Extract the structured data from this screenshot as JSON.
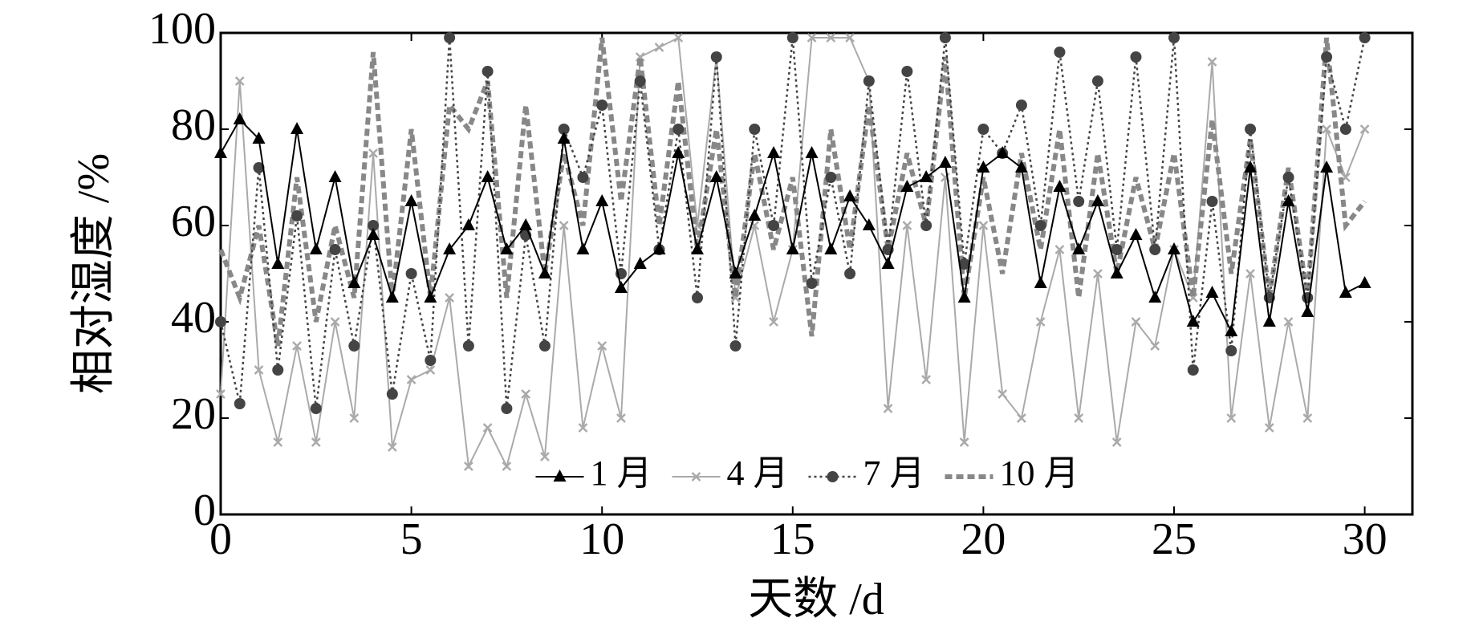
{
  "chart_data": {
    "type": "line",
    "xlabel": "天数 /d",
    "ylabel": "相对湿度 /%",
    "xlim": [
      0,
      31.25
    ],
    "ylim": [
      0,
      100
    ],
    "xticks": [
      0,
      5,
      10,
      15,
      20,
      25,
      30
    ],
    "yticks": [
      0,
      20,
      40,
      60,
      80,
      100
    ],
    "legend": "lower center",
    "x": [
      0,
      0.5,
      1,
      1.5,
      2,
      2.5,
      3,
      3.5,
      4,
      4.5,
      5,
      5.5,
      6,
      6.5,
      7,
      7.5,
      8,
      8.5,
      9,
      9.5,
      10,
      10.5,
      11,
      11.5,
      12,
      12.5,
      13,
      13.5,
      14,
      14.5,
      15,
      15.5,
      16,
      16.5,
      17,
      17.5,
      18,
      18.5,
      19,
      19.5,
      20,
      20.5,
      21,
      21.5,
      22,
      22.5,
      23,
      23.5,
      24,
      24.5,
      25,
      25.5,
      26,
      26.5,
      27,
      27.5,
      28,
      28.5,
      29,
      29.5,
      30
    ],
    "series": [
      {
        "name": "1 月",
        "color": "#000000",
        "marker": "triangle",
        "linestyle": "solid",
        "values": [
          75,
          82,
          78,
          52,
          80,
          55,
          70,
          48,
          58,
          45,
          65,
          45,
          55,
          60,
          70,
          55,
          60,
          50,
          78,
          55,
          65,
          47,
          52,
          55,
          75,
          55,
          70,
          50,
          62,
          75,
          55,
          75,
          55,
          66,
          60,
          52,
          68,
          70,
          73,
          45,
          72,
          75,
          72,
          48,
          68,
          55,
          65,
          50,
          58,
          45,
          55,
          40,
          46,
          38,
          72,
          40,
          65,
          42,
          72,
          46,
          48
        ]
      },
      {
        "name": "4 月",
        "color": "#aaaaaa",
        "marker": "x",
        "linestyle": "solid",
        "values": [
          25,
          90,
          30,
          15,
          35,
          15,
          40,
          20,
          75,
          14,
          28,
          30,
          45,
          10,
          18,
          10,
          25,
          12,
          60,
          18,
          35,
          20,
          95,
          97,
          99,
          60,
          95,
          45,
          60,
          40,
          55,
          99,
          99,
          99,
          90,
          22,
          60,
          28,
          70,
          15,
          60,
          25,
          20,
          40,
          55,
          20,
          50,
          15,
          40,
          35,
          55,
          45,
          94,
          20,
          50,
          18,
          40,
          20,
          80,
          70,
          80
        ]
      },
      {
        "name": "7 月",
        "color": "#444444",
        "marker": "circle",
        "linestyle": "dotted",
        "values": [
          40,
          23,
          72,
          30,
          62,
          22,
          55,
          35,
          60,
          25,
          50,
          32,
          99,
          35,
          92,
          22,
          58,
          35,
          80,
          70,
          85,
          50,
          90,
          55,
          80,
          45,
          95,
          35,
          80,
          60,
          99,
          48,
          70,
          50,
          90,
          55,
          92,
          60,
          99,
          52,
          80,
          75,
          85,
          60,
          96,
          65,
          90,
          55,
          95,
          55,
          99,
          30,
          65,
          34,
          80,
          45,
          70,
          45,
          95,
          80,
          99
        ]
      },
      {
        "name": "10 月",
        "color": "#888888",
        "marker": "none",
        "linestyle": "dashed",
        "values": [
          55,
          45,
          60,
          35,
          70,
          40,
          60,
          45,
          96,
          45,
          80,
          45,
          85,
          80,
          90,
          45,
          85,
          50,
          75,
          60,
          99,
          65,
          95,
          60,
          90,
          55,
          80,
          45,
          75,
          55,
          70,
          37,
          80,
          55,
          85,
          55,
          75,
          60,
          95,
          45,
          70,
          50,
          75,
          55,
          80,
          45,
          75,
          50,
          70,
          55,
          75,
          45,
          82,
          50,
          78,
          45,
          72,
          45,
          99,
          60,
          65
        ]
      }
    ]
  }
}
